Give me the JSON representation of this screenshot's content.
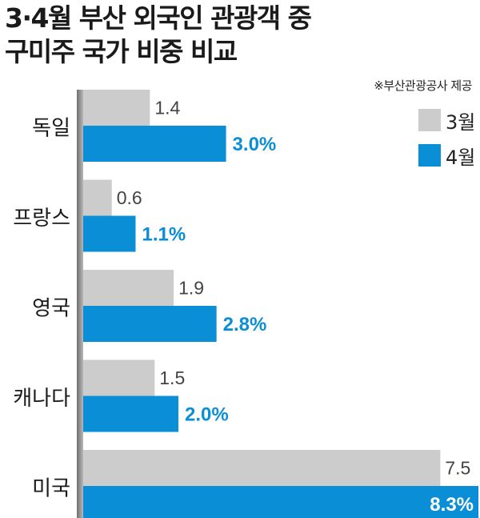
{
  "title_line1": "3·4월 부산 외국인 관광객 중",
  "title_line2": "구미주 국가 비중 비교",
  "source": "※부산관광공사 제공",
  "colors": {
    "march": "#cccccc",
    "april": "#0a8fd6",
    "axis": "#9a9a9a"
  },
  "chart_data": {
    "type": "bar",
    "orientation": "horizontal",
    "title": "3·4월 부산 외국인 관광객 중 구미주 국가 비중 비교",
    "categories": [
      "독일",
      "프랑스",
      "영국",
      "캐나다",
      "미국"
    ],
    "series": [
      {
        "name": "3월",
        "values": [
          1.4,
          0.6,
          1.9,
          1.5,
          7.5
        ],
        "labels": [
          "1.4",
          "0.6",
          "1.9",
          "1.5",
          "7.5"
        ]
      },
      {
        "name": "4월",
        "values": [
          3.0,
          1.1,
          2.8,
          2.0,
          8.3
        ],
        "labels": [
          "3.0%",
          "1.1%",
          "2.8%",
          "2.0%",
          "8.3%"
        ]
      }
    ],
    "xlim": [
      0,
      8.3
    ],
    "unit": "%",
    "legend": "top-right",
    "grid": false
  }
}
